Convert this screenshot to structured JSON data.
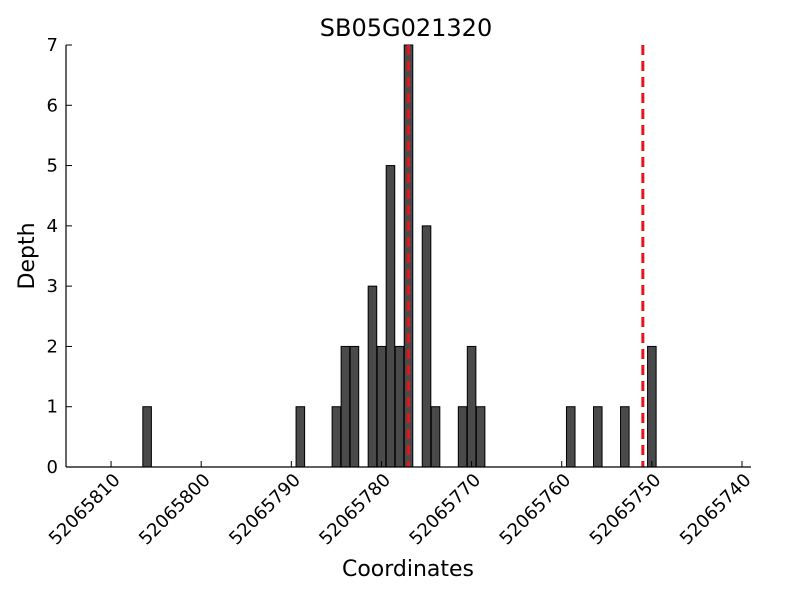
{
  "chart_data": {
    "type": "bar",
    "title": "SB05G021320",
    "xlabel": "Coordinates",
    "ylabel": "Depth",
    "x_reversed": true,
    "xlim": [
      52065815,
      52065739
    ],
    "ylim": [
      0,
      7
    ],
    "x_ticks": [
      52065810,
      52065800,
      52065790,
      52065780,
      52065770,
      52065760,
      52065750,
      52065740
    ],
    "y_ticks": [
      0,
      1,
      2,
      3,
      4,
      5,
      6,
      7
    ],
    "x": [
      52065806,
      52065789,
      52065785,
      52065784,
      52065783,
      52065781,
      52065780,
      52065779,
      52065778,
      52065777,
      52065775,
      52065774,
      52065771,
      52065770,
      52065769,
      52065759,
      52065756,
      52065753,
      52065750
    ],
    "values": [
      1,
      1,
      1,
      2,
      2,
      3,
      2,
      5,
      2,
      7,
      4,
      1,
      1,
      2,
      1,
      1,
      1,
      1,
      2
    ],
    "bar_color": "#4a4a4a",
    "bar_edge_color": "#000000",
    "reference_lines": [
      {
        "x": 52065777,
        "color": "#e8141b",
        "style": "dashed"
      },
      {
        "x": 52065751,
        "color": "#e8141b",
        "style": "dashed"
      }
    ],
    "grid": false
  }
}
